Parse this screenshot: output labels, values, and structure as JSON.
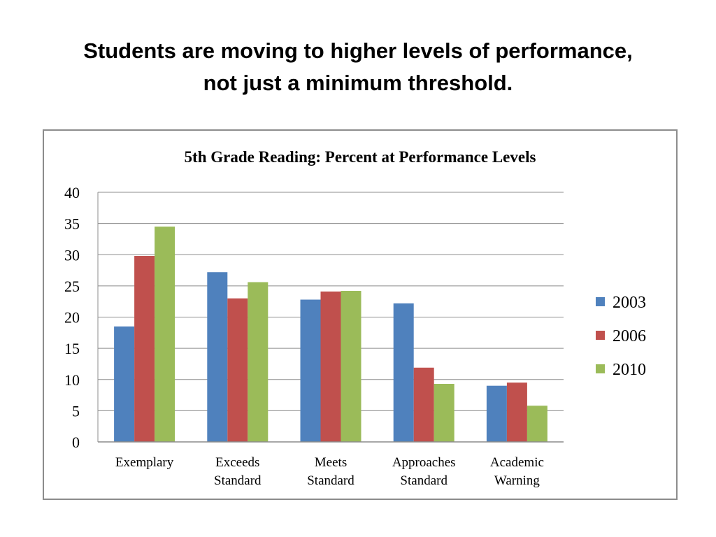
{
  "slide": {
    "title_line1": "Students are moving to higher levels of performance,",
    "title_line2": "not just a minimum threshold."
  },
  "chart_data": {
    "type": "bar",
    "title": "5th Grade Reading: Percent at Performance Levels",
    "categories": [
      [
        "Exemplary"
      ],
      [
        "Exceeds",
        "Standard"
      ],
      [
        "Meets",
        "Standard"
      ],
      [
        "Approaches",
        "Standard"
      ],
      [
        "Academic",
        "Warning"
      ]
    ],
    "series": [
      {
        "name": "2003",
        "color": "#4f81bd",
        "values": [
          18.5,
          27.2,
          22.8,
          22.2,
          9.0
        ]
      },
      {
        "name": "2006",
        "color": "#c0504d",
        "values": [
          29.8,
          23.0,
          24.1,
          11.9,
          9.5
        ]
      },
      {
        "name": "2010",
        "color": "#9bbb59",
        "values": [
          34.5,
          25.6,
          24.2,
          9.3,
          5.8
        ]
      }
    ],
    "ylim": [
      0,
      40
    ],
    "yticks": [
      0,
      5,
      10,
      15,
      20,
      25,
      30,
      35,
      40
    ],
    "grid": true,
    "legend_position": "right"
  }
}
